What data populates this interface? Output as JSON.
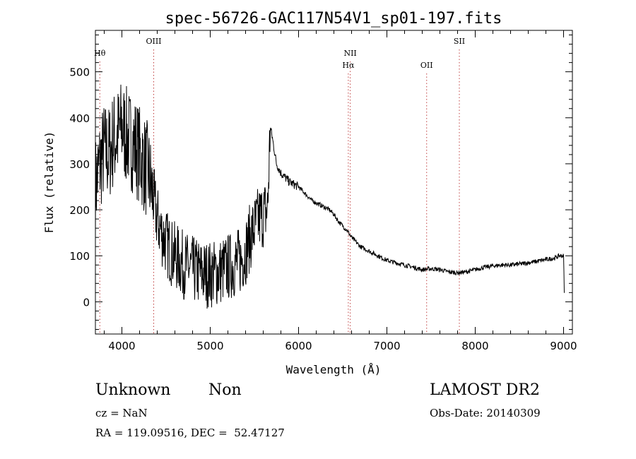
{
  "chart_data": {
    "type": "line",
    "title": "spec-56726-GAC117N54V1_sp01-197.fits",
    "xlabel": "Wavelength (Å)",
    "ylabel": "Flux (relative)",
    "xlim": [
      3700,
      9100
    ],
    "ylim": [
      -70,
      590
    ],
    "xticks": [
      4000,
      5000,
      6000,
      7000,
      8000,
      9000
    ],
    "yticks": [
      0,
      100,
      200,
      300,
      400,
      500
    ],
    "grid": false,
    "line_color": "#000000",
    "marker_color": "#c04040",
    "lines": [
      {
        "label": "Hθ",
        "x": 3750,
        "row": 1
      },
      {
        "label": "OIII",
        "x": 4360,
        "row": 0
      },
      {
        "label": "NII",
        "x": 6585,
        "row": 1
      },
      {
        "label": "Hα",
        "x": 6563,
        "row": 2
      },
      {
        "label": "OII",
        "x": 7450,
        "row": 2
      },
      {
        "label": "SII",
        "x": 7820,
        "row": 0
      }
    ],
    "series": [
      {
        "x": [
          3700,
          3750,
          3800,
          3850,
          3900,
          3950,
          4000,
          4050,
          4100,
          4150,
          4200,
          4250,
          4300,
          4350,
          4400,
          4450,
          4500,
          4550,
          4600,
          4650,
          4700,
          4750,
          4800,
          4850,
          4900,
          4950,
          5000,
          5050,
          5100,
          5150,
          5200,
          5250,
          5300,
          5350,
          5400,
          5450,
          5500,
          5550,
          5600,
          5650,
          5680,
          5700,
          5750,
          5800,
          5850,
          5900,
          5950,
          6000,
          6050,
          6100,
          6150,
          6200,
          6250,
          6300,
          6350,
          6400,
          6450,
          6500,
          6550,
          6600,
          6650,
          6700,
          6750,
          6800,
          6850,
          6900,
          6950,
          7000,
          7100,
          7200,
          7300,
          7400,
          7500,
          7600,
          7700,
          7800,
          7900,
          8000,
          8100,
          8200,
          8300,
          8400,
          8500,
          8600,
          8700,
          8800,
          8900,
          8950,
          9000,
          9010
        ],
        "y": [
          250,
          300,
          330,
          320,
          350,
          360,
          380,
          360,
          350,
          340,
          320,
          300,
          280,
          230,
          180,
          150,
          130,
          110,
          100,
          90,
          80,
          75,
          70,
          65,
          62,
          60,
          60,
          62,
          65,
          70,
          75,
          80,
          85,
          90,
          110,
          140,
          160,
          180,
          190,
          200,
          380,
          360,
          300,
          280,
          270,
          260,
          255,
          250,
          240,
          230,
          220,
          215,
          210,
          205,
          200,
          190,
          175,
          165,
          155,
          140,
          130,
          120,
          115,
          110,
          105,
          100,
          95,
          90,
          85,
          80,
          75,
          70,
          72,
          70,
          65,
          63,
          65,
          70,
          75,
          78,
          80,
          80,
          82,
          85,
          88,
          92,
          95,
          100,
          100,
          5
        ]
      }
    ]
  },
  "info": {
    "class": "Unknown",
    "subclass": "Non",
    "survey": "LAMOST DR2",
    "cz": "cz = NaN",
    "obs_date": "Obs-Date: 20140309",
    "coords": "RA = 119.09516, DEC =  52.47127"
  }
}
